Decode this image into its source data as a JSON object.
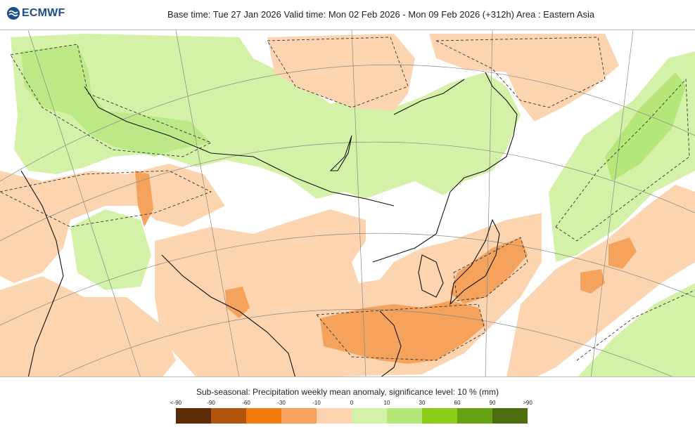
{
  "logo": {
    "text": "ECMWF"
  },
  "header": {
    "title": "Base time: Tue 27 Jan 2026 Valid time: Mon 02 Feb 2026 - Mon 09 Feb 2026 (+312h) Area : Eastern Asia"
  },
  "map": {
    "region": "Eastern Asia",
    "colors": {
      "strong_dry": "#f5a35c",
      "weak_dry": "#fcd5b0",
      "weak_wet": "#d4f1a8",
      "mod_wet": "#b4e67a",
      "neutral": "#ffffff",
      "coast": "#111111",
      "grid": "#888888"
    }
  },
  "legend": {
    "title": "Sub-seasonal: Precipitation weekly mean anomaly, significance level: 10 % (mm)",
    "ticks": [
      "<-90",
      "-90",
      "-60",
      "-30",
      "-10",
      "0",
      "10",
      "30",
      "60",
      "90",
      ">90"
    ],
    "colors": [
      "#5c2b07",
      "#b3540b",
      "#f47b0e",
      "#f5a35c",
      "#fcd5b0",
      "#d4f1a8",
      "#b4e67a",
      "#8ccc17",
      "#67a213",
      "#4c6e0c"
    ]
  }
}
